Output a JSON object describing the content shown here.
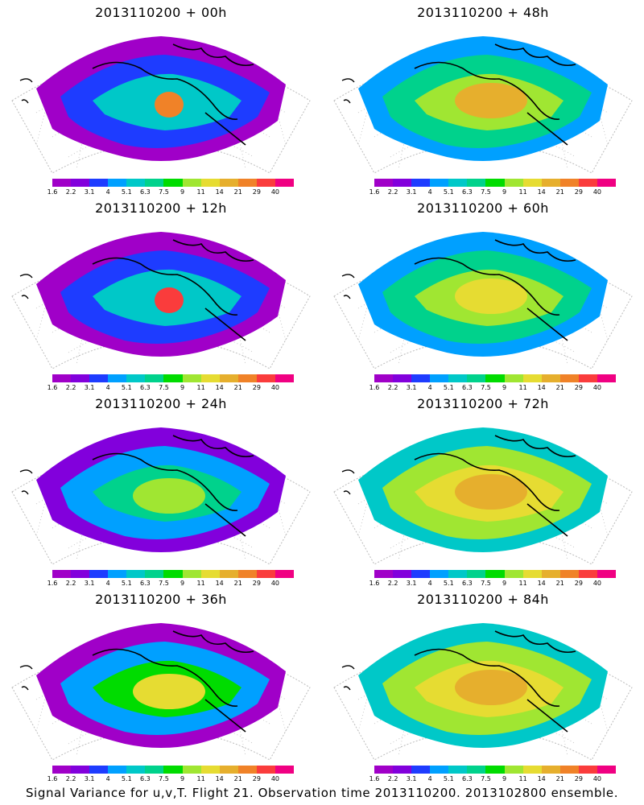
{
  "panels": [
    {
      "title": "2013110200 + 00h",
      "map_icon": "map-00h"
    },
    {
      "title": "2013110200 + 48h",
      "map_icon": "map-48h"
    },
    {
      "title": "2013110200 + 12h",
      "map_icon": "map-12h"
    },
    {
      "title": "2013110200 + 60h",
      "map_icon": "map-60h"
    },
    {
      "title": "2013110200 + 24h",
      "map_icon": "map-24h"
    },
    {
      "title": "2013110200 + 72h",
      "map_icon": "map-72h"
    },
    {
      "title": "2013110200 + 36h",
      "map_icon": "map-36h"
    },
    {
      "title": "2013110200 + 84h",
      "map_icon": "map-84h"
    }
  ],
  "colorbar": {
    "labels": [
      "1.6",
      "2.2",
      "3.1",
      "4",
      "5.1",
      "6.3",
      "7.5",
      "9",
      "11",
      "14",
      "21",
      "29",
      "40"
    ],
    "colors": [
      "#a000c8",
      "#8200dc",
      "#1e3cff",
      "#00a0ff",
      "#00c8c8",
      "#00d28c",
      "#00dc00",
      "#a0e632",
      "#e6dc32",
      "#e6af2d",
      "#f08228",
      "#fa3c3c",
      "#f00082"
    ]
  },
  "footer": "Signal Variance for u,v,T. Flight 21. Observation time 2013110200. 2013102800 ensemble."
}
